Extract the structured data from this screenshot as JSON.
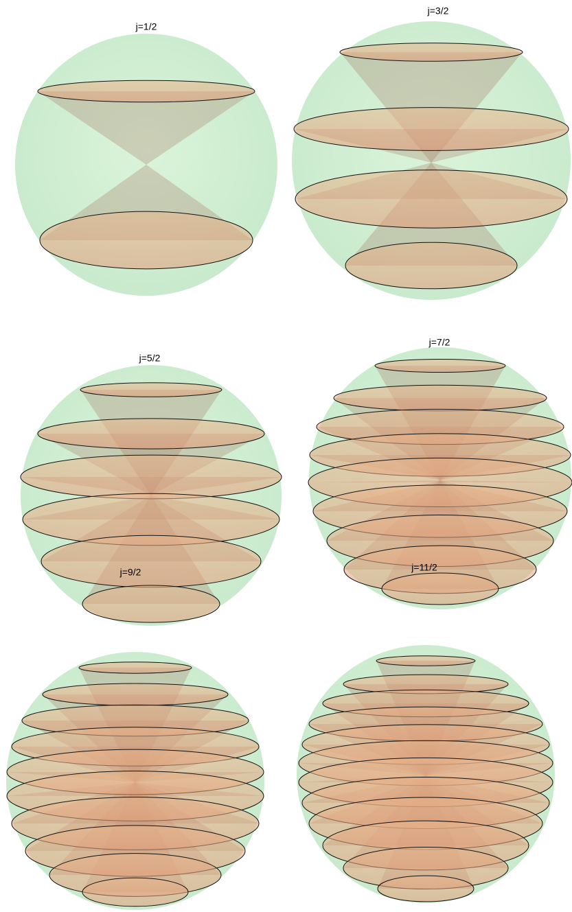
{
  "panels": [
    {
      "title": "j=1/2"
    },
    {
      "title": "j=3/2"
    },
    {
      "title": "j=5/2"
    },
    {
      "title": "j=7/2"
    },
    {
      "title": "j=9/2"
    },
    {
      "title": "j=11/2"
    }
  ]
}
